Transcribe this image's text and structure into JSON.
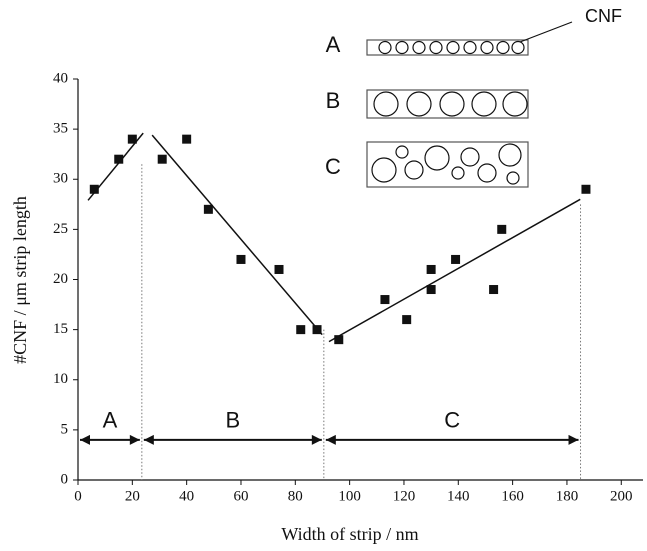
{
  "chart_data": {
    "type": "scatter",
    "x_label": "Width of strip / nm",
    "y_label": "#CNF / μm strip length",
    "xlim": [
      0,
      208
    ],
    "ylim": [
      0,
      40
    ],
    "xticks": [
      0,
      20,
      40,
      60,
      80,
      100,
      120,
      140,
      160,
      180,
      200
    ],
    "yticks": [
      0,
      5,
      10,
      15,
      20,
      25,
      30,
      35,
      40
    ],
    "color": "#111111",
    "x": [
      6,
      15,
      20,
      31,
      40,
      48,
      60,
      74,
      82,
      88,
      96,
      113,
      121,
      130,
      130,
      139,
      153,
      156,
      187
    ],
    "y": [
      29,
      32,
      34,
      32,
      34,
      27,
      22,
      21,
      15,
      15,
      14,
      18,
      16,
      21,
      19,
      22,
      19,
      25,
      29
    ],
    "fits": [
      {
        "x": [
          3.7,
          24
        ],
        "y": [
          27.9,
          34.6
        ]
      },
      {
        "x": [
          27.3,
          89.9
        ],
        "y": [
          34.4,
          14.5
        ]
      },
      {
        "x": [
          92.4,
          184.9
        ],
        "y": [
          13.8,
          28
        ]
      }
    ],
    "regions": [
      {
        "label": "A",
        "from": 0,
        "to": 23.5,
        "top": 31.5
      },
      {
        "label": "B",
        "from": 23.5,
        "to": 90.5,
        "top": 15
      },
      {
        "label": "C",
        "from": 90.5,
        "to": 185,
        "top": 27.5
      }
    ],
    "arrow_y": 4,
    "insets": [
      {
        "label": "A"
      },
      {
        "label": "B"
      },
      {
        "label": "C"
      }
    ],
    "inset_note": "CNF"
  }
}
